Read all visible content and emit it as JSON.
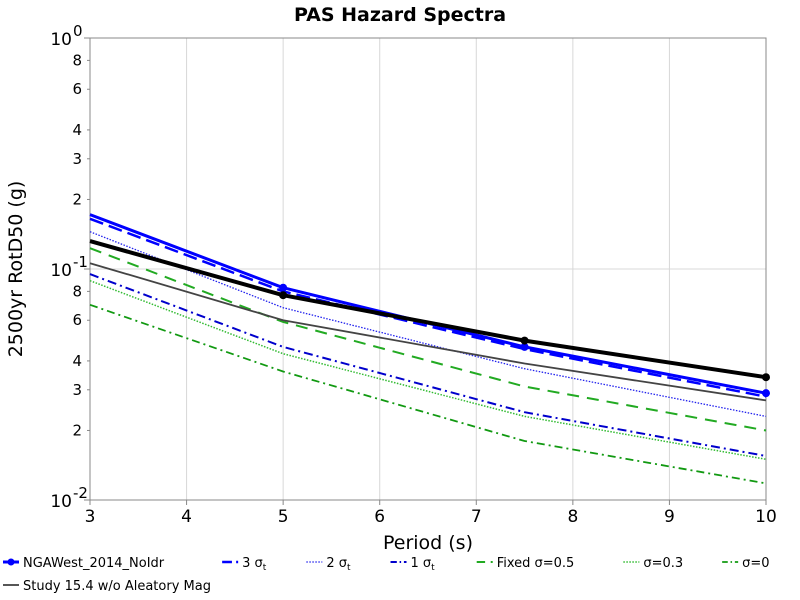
{
  "chart_data": {
    "type": "line",
    "title": "PAS Hazard Spectra",
    "xlabel": "Period (s)",
    "ylabel": "2500yr RotD50 (g)",
    "xlim": [
      3,
      10
    ],
    "ylim": [
      0.01,
      1
    ],
    "yscale": "log",
    "grid": true,
    "legend_position": "bottom",
    "x_ticks": [
      "3",
      "4",
      "5",
      "6",
      "7",
      "8",
      "9",
      "10"
    ],
    "y_major_ticks": [
      {
        "base": "10",
        "exp": "0",
        "value": 1
      },
      {
        "base": "10",
        "exp": "-1",
        "value": 0.1
      },
      {
        "base": "10",
        "exp": "-2",
        "value": 0.01
      }
    ],
    "y_minor_ticks": [
      {
        "label": "8",
        "value": 0.8
      },
      {
        "label": "6",
        "value": 0.6
      },
      {
        "label": "4",
        "value": 0.4
      },
      {
        "label": "3",
        "value": 0.3
      },
      {
        "label": "2",
        "value": 0.2
      },
      {
        "label": "8",
        "value": 0.08
      },
      {
        "label": "6",
        "value": 0.06
      },
      {
        "label": "4",
        "value": 0.04
      },
      {
        "label": "3",
        "value": 0.03
      },
      {
        "label": "2",
        "value": 0.02
      }
    ],
    "series": [
      {
        "name": "NGAWest_2014_NoIdr",
        "sigma": "",
        "color": "#0000ff",
        "dash": "",
        "width": 3,
        "markers": true,
        "x": [
          3,
          5,
          7.5,
          10
        ],
        "y": [
          0.172,
          0.083,
          0.046,
          0.029
        ]
      },
      {
        "name": "3 σ",
        "sigma": "t",
        "color": "#0000ff",
        "dash": "14,6",
        "width": 2.5,
        "markers": false,
        "x": [
          3,
          5,
          7.5,
          10
        ],
        "y": [
          0.165,
          0.08,
          0.045,
          0.028
        ]
      },
      {
        "name": "2 σ",
        "sigma": "t",
        "color": "#2222ee",
        "dash": "1.5,1.5",
        "width": 1.3,
        "markers": false,
        "x": [
          3,
          5,
          7.5,
          10
        ],
        "y": [
          0.145,
          0.068,
          0.037,
          0.023
        ]
      },
      {
        "name": "1 σ",
        "sigma": "t",
        "color": "#0000cc",
        "dash": "9,4,2,4",
        "width": 2,
        "markers": false,
        "x": [
          3,
          5,
          7.5,
          10
        ],
        "y": [
          0.095,
          0.046,
          0.024,
          0.0155
        ]
      },
      {
        "name": "Fixed σ=0.5",
        "sigma": "",
        "color": "#22aa22",
        "dash": "12,8",
        "width": 2,
        "markers": false,
        "x": [
          3,
          5,
          7.5,
          10
        ],
        "y": [
          0.123,
          0.059,
          0.031,
          0.02
        ]
      },
      {
        "name": "σ=0.3",
        "sigma": "",
        "color": "#33bb33",
        "dash": "1.5,1.5",
        "width": 1.5,
        "markers": false,
        "x": [
          3,
          5,
          7.5,
          10
        ],
        "y": [
          0.089,
          0.043,
          0.023,
          0.015
        ]
      },
      {
        "name": "σ=0",
        "sigma": "",
        "color": "#119911",
        "dash": "8,4,2,4",
        "width": 1.8,
        "markers": false,
        "x": [
          3,
          5,
          7.5,
          10
        ],
        "y": [
          0.07,
          0.036,
          0.018,
          0.0118
        ]
      },
      {
        "name": "Study 15.4",
        "sigma": "",
        "color": "#000000",
        "dash": "",
        "width": 4,
        "markers": true,
        "x": [
          3,
          5,
          7.5,
          10
        ],
        "y": [
          0.132,
          0.077,
          0.049,
          0.034
        ]
      },
      {
        "name": "Study 15.4 w/o Aleatory Mag",
        "sigma": "",
        "color": "#444444",
        "dash": "",
        "width": 1.8,
        "markers": false,
        "x": [
          3,
          5,
          7.5,
          10
        ],
        "y": [
          0.106,
          0.06,
          0.039,
          0.027
        ]
      }
    ]
  }
}
